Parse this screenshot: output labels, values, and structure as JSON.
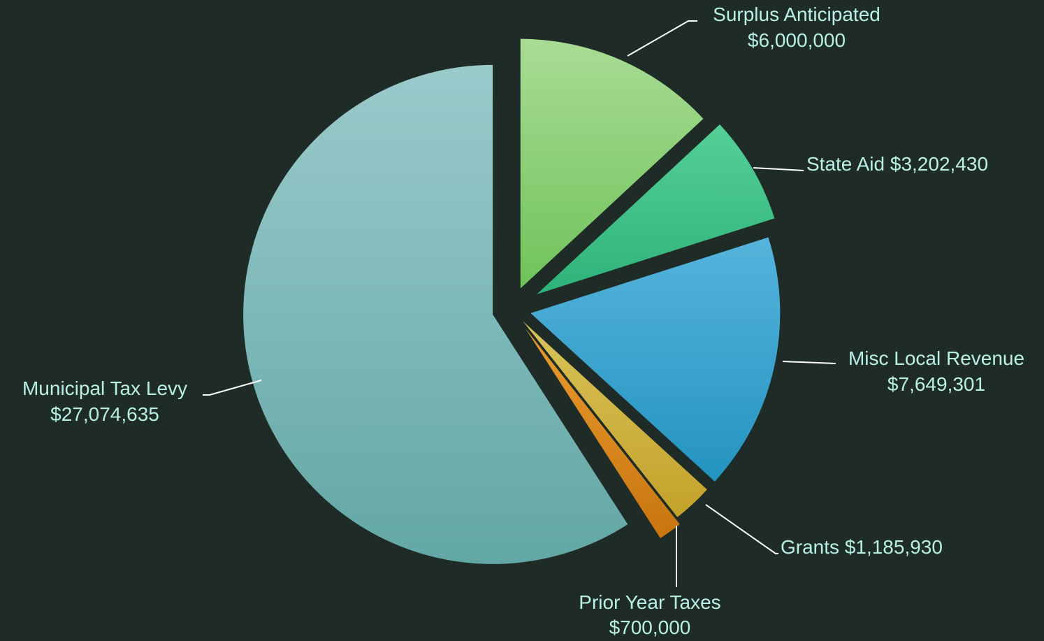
{
  "chart_data": {
    "type": "pie",
    "title": "",
    "slices": [
      {
        "name": "Surplus Anticipated",
        "value": 6000000,
        "value_label": "$6,000,000",
        "colors": [
          "#a9dc95",
          "#6fc35a"
        ]
      },
      {
        "name": "State Aid",
        "value": 3202430,
        "value_label": "$3,202,430",
        "colors": [
          "#54cf96",
          "#2fb37a"
        ]
      },
      {
        "name": "Misc Local Revenue",
        "value": 7649301,
        "value_label": "$7,649,301",
        "colors": [
          "#55b4dc",
          "#2493c0"
        ]
      },
      {
        "name": "Grants",
        "value": 1185930,
        "value_label": "$1,185,930",
        "colors": [
          "#d8c35a",
          "#c4a22a"
        ]
      },
      {
        "name": "Prior Year Taxes",
        "value": 700000,
        "value_label": "$700,000",
        "colors": [
          "#eb9a2e",
          "#c7760f"
        ]
      },
      {
        "name": "Municipal Tax Levy",
        "value": 27074635,
        "value_label": "$27,074,635",
        "colors": [
          "#9bcacb",
          "#62a7a6"
        ]
      }
    ]
  }
}
